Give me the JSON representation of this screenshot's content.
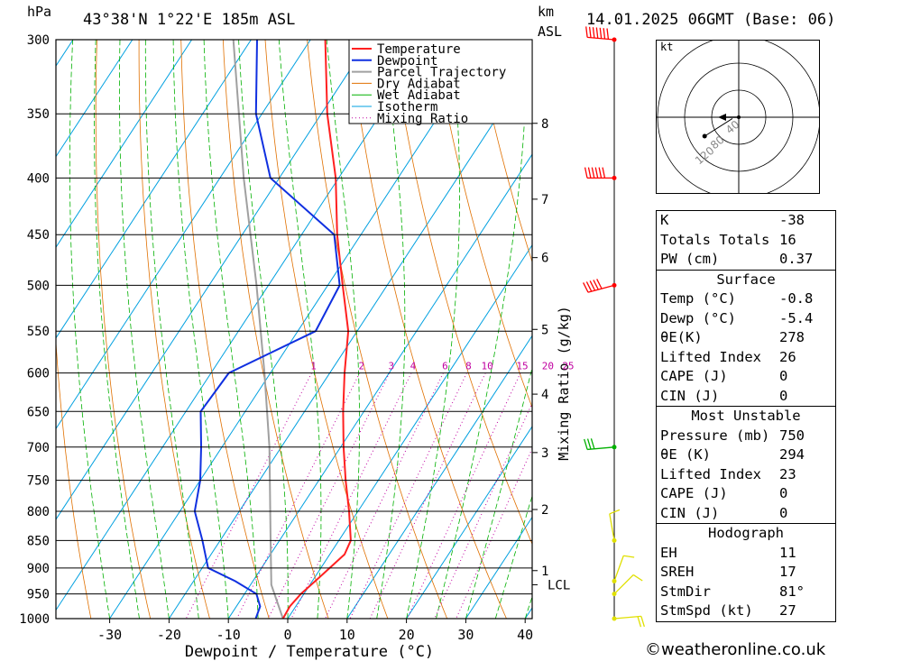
{
  "header": {
    "location": "43°38'N  1°22'E  185m  ASL",
    "datetime": "14.01.2025  06GMT  (Base: 06)",
    "unit_hpa": "hPa",
    "unit_km": "km",
    "unit_asl": "ASL"
  },
  "chart_data": {
    "type": "skew-t",
    "xlabel": "Dewpoint / Temperature (°C)",
    "ylabel_right": "Mixing Ratio (g/kg)",
    "x_ticks": [
      -30,
      -20,
      -10,
      0,
      10,
      20,
      30,
      40
    ],
    "xlim": [
      -40,
      40
    ],
    "pressure_levels": [
      300,
      350,
      400,
      450,
      500,
      550,
      600,
      650,
      700,
      750,
      800,
      850,
      900,
      950,
      1000
    ],
    "km_ticks": [
      {
        "label": "8",
        "p": 357
      },
      {
        "label": "7",
        "p": 418
      },
      {
        "label": "6",
        "p": 472
      },
      {
        "label": "5",
        "p": 548
      },
      {
        "label": "4",
        "p": 627
      },
      {
        "label": "3",
        "p": 708
      },
      {
        "label": "2",
        "p": 797
      },
      {
        "label": "1",
        "p": 905
      }
    ],
    "lcl": {
      "label": "LCL",
      "p": 932
    },
    "mixing_ratio_labels": [
      "1",
      "2",
      "3",
      "4",
      "6",
      "8",
      "10",
      "15",
      "20",
      "25"
    ],
    "mixing_ratio_values": [
      1,
      2,
      3,
      4,
      6,
      8,
      10,
      15,
      20,
      25
    ],
    "legend": [
      "Temperature",
      "Dewpoint",
      "Parcel Trajectory",
      "Dry Adiabat",
      "Wet Adiabat",
      "Isotherm",
      "Mixing Ratio"
    ],
    "temperature": [
      {
        "p": 1000,
        "t": -0.8
      },
      {
        "p": 975,
        "t": -1.0
      },
      {
        "p": 950,
        "t": -0.5
      },
      {
        "p": 925,
        "t": 0.5
      },
      {
        "p": 900,
        "t": 1.5
      },
      {
        "p": 875,
        "t": 2.5
      },
      {
        "p": 850,
        "t": 2.0
      },
      {
        "p": 800,
        "t": -1.5
      },
      {
        "p": 750,
        "t": -5.5
      },
      {
        "p": 700,
        "t": -9.5
      },
      {
        "p": 650,
        "t": -13.5
      },
      {
        "p": 600,
        "t": -17.5
      },
      {
        "p": 550,
        "t": -21.5
      },
      {
        "p": 500,
        "t": -27.5
      },
      {
        "p": 450,
        "t": -34.0
      },
      {
        "p": 400,
        "t": -40.5
      },
      {
        "p": 350,
        "t": -49.0
      },
      {
        "p": 300,
        "t": -57.5
      }
    ],
    "dewpoint": [
      {
        "p": 1000,
        "t": -5.4
      },
      {
        "p": 975,
        "t": -6.0
      },
      {
        "p": 950,
        "t": -8.0
      },
      {
        "p": 925,
        "t": -13.0
      },
      {
        "p": 900,
        "t": -19.0
      },
      {
        "p": 850,
        "t": -23.0
      },
      {
        "p": 800,
        "t": -27.5
      },
      {
        "p": 750,
        "t": -30.0
      },
      {
        "p": 700,
        "t": -33.5
      },
      {
        "p": 650,
        "t": -37.5
      },
      {
        "p": 600,
        "t": -37.0
      },
      {
        "p": 550,
        "t": -27.0
      },
      {
        "p": 500,
        "t": -28.0
      },
      {
        "p": 450,
        "t": -34.5
      },
      {
        "p": 400,
        "t": -51.5
      },
      {
        "p": 350,
        "t": -61.0
      },
      {
        "p": 300,
        "t": -69.0
      }
    ],
    "parcel": [
      {
        "p": 1000,
        "t": -0.8
      },
      {
        "p": 932,
        "t": -6.5
      },
      {
        "p": 850,
        "t": -11.5
      },
      {
        "p": 700,
        "t": -22.0
      },
      {
        "p": 600,
        "t": -31.0
      },
      {
        "p": 500,
        "t": -42.0
      },
      {
        "p": 400,
        "t": -56.0
      },
      {
        "p": 300,
        "t": -73.0
      }
    ],
    "wind_barbs": [
      {
        "p": 300,
        "dir": 275,
        "kt": 70,
        "color": "#ff0000"
      },
      {
        "p": 400,
        "dir": 270,
        "kt": 65,
        "color": "#ff0000"
      },
      {
        "p": 500,
        "dir": 255,
        "kt": 55,
        "color": "#ff0000"
      },
      {
        "p": 700,
        "dir": 265,
        "kt": 30,
        "color": "#00b000"
      },
      {
        "p": 850,
        "dir": 350,
        "kt": 10,
        "color": "#e0e000"
      },
      {
        "p": 925,
        "dir": 20,
        "kt": 15,
        "color": "#e0e000"
      },
      {
        "p": 950,
        "dir": 45,
        "kt": 15,
        "color": "#e0e000"
      },
      {
        "p": 1000,
        "dir": 85,
        "kt": 25,
        "color": "#e0e000"
      }
    ]
  },
  "hodograph": {
    "unit": "kt",
    "ring_labels": [
      "40",
      "80",
      "120"
    ],
    "trace": [
      {
        "u": -27,
        "v": -15
      },
      {
        "u": -5,
        "v": -1
      }
    ]
  },
  "indices": {
    "k_label": "K",
    "k": "-38",
    "tt_label": "Totals Totals",
    "tt": "16",
    "pw_label": "PW (cm)",
    "pw": "0.37"
  },
  "surface": {
    "title": "Surface",
    "rows": [
      {
        "label": "Temp (°C)",
        "value": "-0.8"
      },
      {
        "label": "Dewp (°C)",
        "value": "-5.4"
      },
      {
        "label": "θE(K)",
        "value": "278"
      },
      {
        "label": "Lifted Index",
        "value": "26"
      },
      {
        "label": "CAPE (J)",
        "value": "0"
      },
      {
        "label": "CIN (J)",
        "value": "0"
      }
    ]
  },
  "most_unstable": {
    "title": "Most Unstable",
    "rows": [
      {
        "label": "Pressure (mb)",
        "value": "750"
      },
      {
        "label": "θE (K)",
        "value": "294"
      },
      {
        "label": "Lifted Index",
        "value": "23"
      },
      {
        "label": "CAPE (J)",
        "value": "0"
      },
      {
        "label": "CIN (J)",
        "value": "0"
      }
    ]
  },
  "hodo_params": {
    "title": "Hodograph",
    "rows": [
      {
        "label": "EH",
        "value": "11"
      },
      {
        "label": "SREH",
        "value": "17"
      },
      {
        "label": "StmDir",
        "value": "81°"
      },
      {
        "label": "StmSpd (kt)",
        "value": "27"
      }
    ]
  },
  "footer": {
    "copyright": "©weatheronline.co.uk"
  },
  "colors": {
    "temperature": "#ff2020",
    "dewpoint": "#1030e0",
    "parcel": "#a0a0a0",
    "dry_adiabat": "#e07000",
    "wet_adiabat": "#00b000",
    "isotherm": "#00a0e0",
    "mixing_ratio": "#c000a0"
  }
}
